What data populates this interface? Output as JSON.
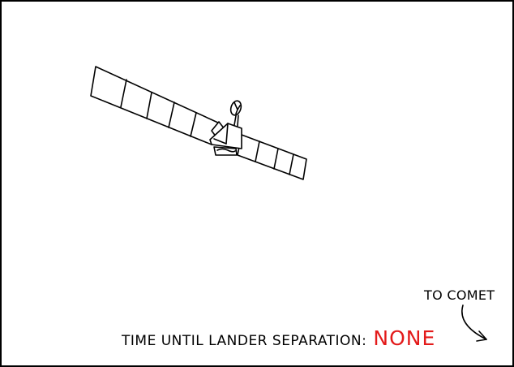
{
  "caption": {
    "label": "TIME UNTIL LANDER SEPARATION:",
    "value": "NONE",
    "value_color": "#e31b1b"
  },
  "annotation": {
    "text": "TO COMET"
  },
  "colors": {
    "ink": "#000000",
    "background": "#ffffff"
  }
}
